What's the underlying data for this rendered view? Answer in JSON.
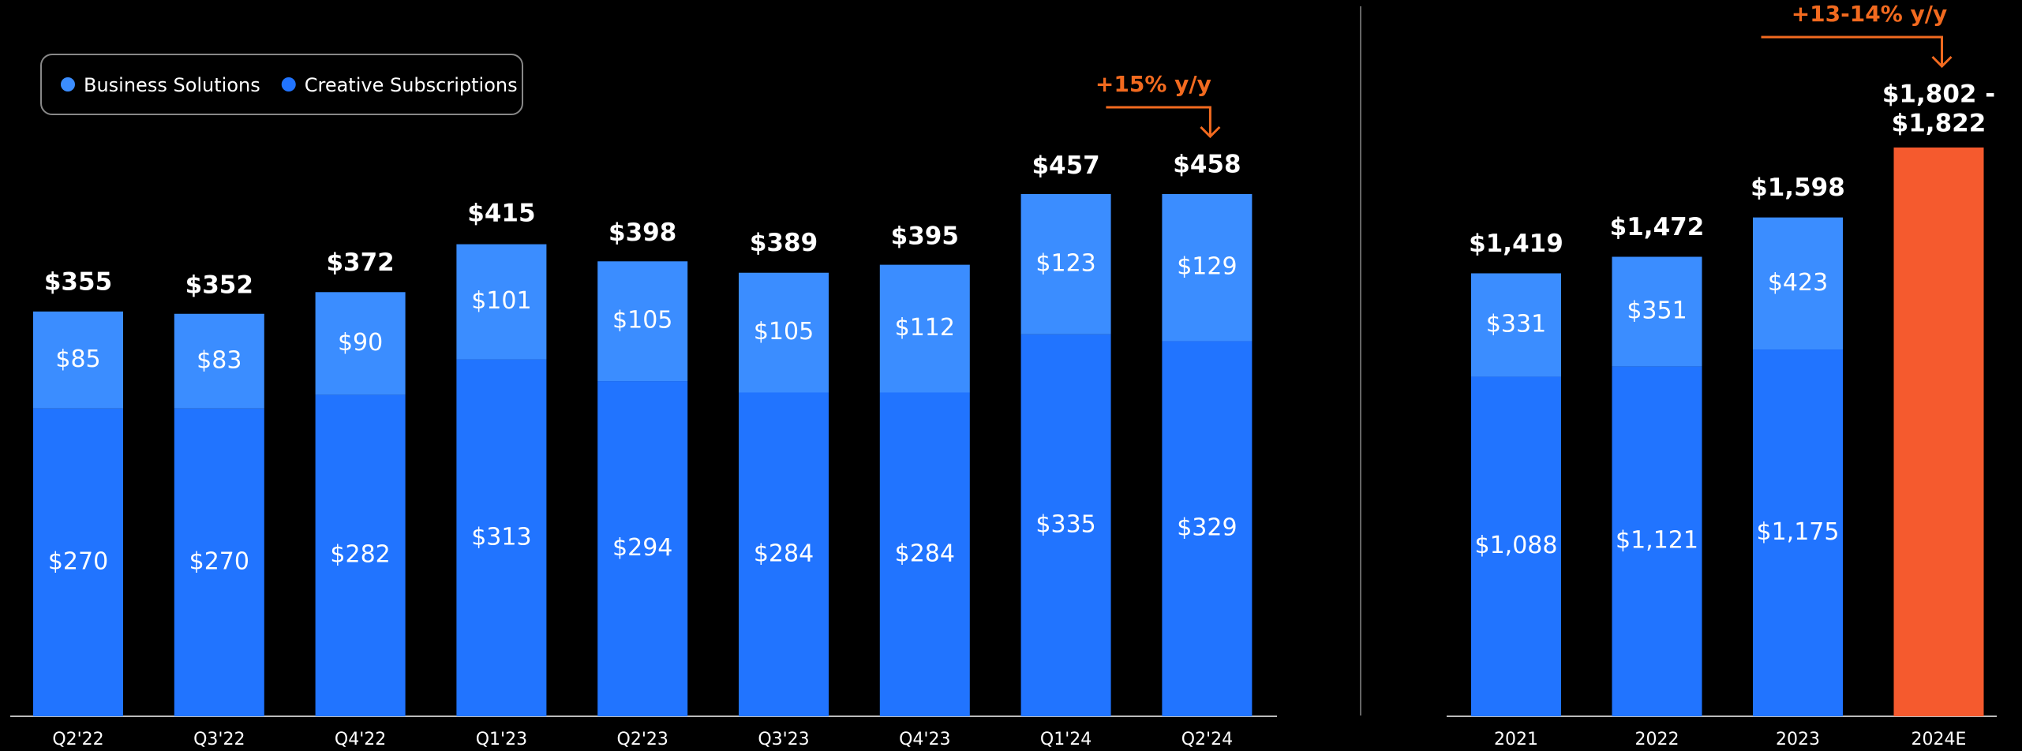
{
  "chart_data": [
    {
      "type": "bar",
      "stacked": true,
      "legend": true,
      "categories": [
        "Q2'22",
        "Q3'22",
        "Q4'22",
        "Q1'23",
        "Q2'23",
        "Q3'23",
        "Q4'23",
        "Q1'24",
        "Q2'24"
      ],
      "series": [
        {
          "name": "Business Solutions",
          "color": "#3b8dff",
          "values": [
            85,
            83,
            90,
            101,
            105,
            105,
            112,
            123,
            129
          ],
          "value_labels": [
            "$85",
            "$83",
            "$90",
            "$101",
            "$105",
            "$105",
            "$112",
            "$123",
            "$129"
          ]
        },
        {
          "name": "Creative Subscriptions",
          "color": "#2174ff",
          "values": [
            270,
            270,
            282,
            313,
            294,
            284,
            284,
            335,
            329
          ],
          "value_labels": [
            "$270",
            "$270",
            "$282",
            "$313",
            "$294",
            "$284",
            "$284",
            "$335",
            "$329"
          ]
        }
      ],
      "totals": {
        "values": [
          355,
          352,
          372,
          415,
          398,
          389,
          395,
          457,
          458
        ],
        "value_labels": [
          "$355",
          "$352",
          "$372",
          "$415",
          "$398",
          "$389",
          "$395",
          "$457",
          "$458"
        ]
      },
      "annotation": "+15% y/y",
      "annotation_color": "#f26a1f"
    },
    {
      "type": "bar",
      "stacked": true,
      "legend": false,
      "categories": [
        "2021",
        "2022",
        "2023",
        "2024E"
      ],
      "series": [
        {
          "name": "Business Solutions",
          "color": "#3b8dff",
          "values": [
            331,
            351,
            423,
            null
          ],
          "value_labels": [
            "$331",
            "$351",
            "$423",
            null
          ]
        },
        {
          "name": "Creative Subscriptions",
          "color": "#2174ff",
          "values": [
            1088,
            1121,
            1175,
            null
          ],
          "value_labels": [
            "$1,088",
            "$1,121",
            "$1,175",
            null
          ]
        }
      ],
      "totals": {
        "values": [
          1419,
          1472,
          1598,
          null
        ],
        "value_labels": [
          "$1,419",
          "$1,472",
          "$1,598",
          null
        ]
      },
      "estimate": {
        "low": 1802,
        "high": 1822,
        "value_labels": [
          "$1,802 -",
          "$1,822"
        ],
        "color": "#f55a2e"
      },
      "annotation": "+13-14% y/y",
      "annotation_color": "#f26a1f"
    }
  ]
}
